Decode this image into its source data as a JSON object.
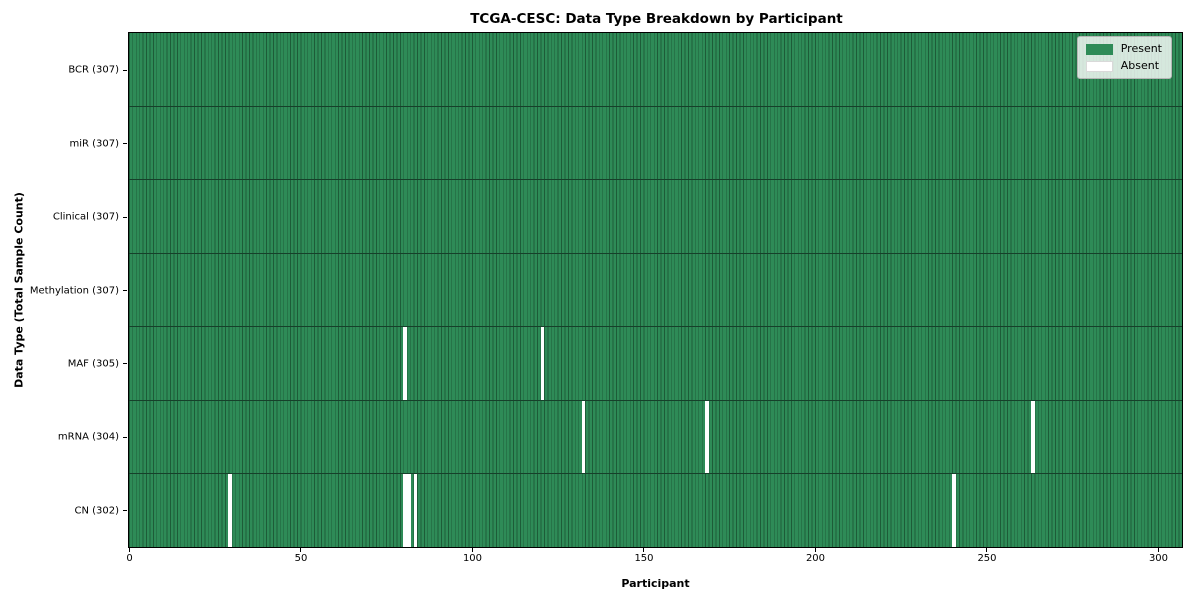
{
  "chart_data": {
    "type": "heatmap",
    "title": "TCGA-CESC: Data Type Breakdown by Participant",
    "xlabel": "Participant",
    "ylabel": "Data Type (Total Sample Count)",
    "n_participants": 307,
    "x_ticks": [
      0,
      50,
      100,
      150,
      200,
      250,
      300
    ],
    "xlim": [
      0,
      307
    ],
    "grid": "cell-edges",
    "legend_position": "upper right",
    "rows": [
      {
        "data_type": "BCR",
        "label": "BCR (307)",
        "present_count": 307,
        "absent_participants": []
      },
      {
        "data_type": "miR",
        "label": "miR (307)",
        "present_count": 307,
        "absent_participants": []
      },
      {
        "data_type": "Clinical",
        "label": "Clinical (307)",
        "present_count": 307,
        "absent_participants": []
      },
      {
        "data_type": "Methylation",
        "label": "Methylation (307)",
        "present_count": 307,
        "absent_participants": []
      },
      {
        "data_type": "MAF",
        "label": "MAF (305)",
        "present_count": 305,
        "absent_participants": [
          80,
          120
        ]
      },
      {
        "data_type": "mRNA",
        "label": "mRNA (304)",
        "present_count": 304,
        "absent_participants": [
          132,
          168,
          263
        ]
      },
      {
        "data_type": "CN",
        "label": "CN (302)",
        "present_count": 302,
        "absent_participants": [
          29,
          80,
          81,
          83,
          240
        ]
      }
    ],
    "legend": [
      {
        "label": "Present",
        "color": "#2e8b57"
      },
      {
        "label": "Absent",
        "color": "#ffffff"
      }
    ],
    "colors": {
      "present": "#2e8b57",
      "absent": "#ffffff",
      "cell_edge": "#1d5c38",
      "row_separator": "#16402a",
      "spine": "#000000"
    }
  }
}
